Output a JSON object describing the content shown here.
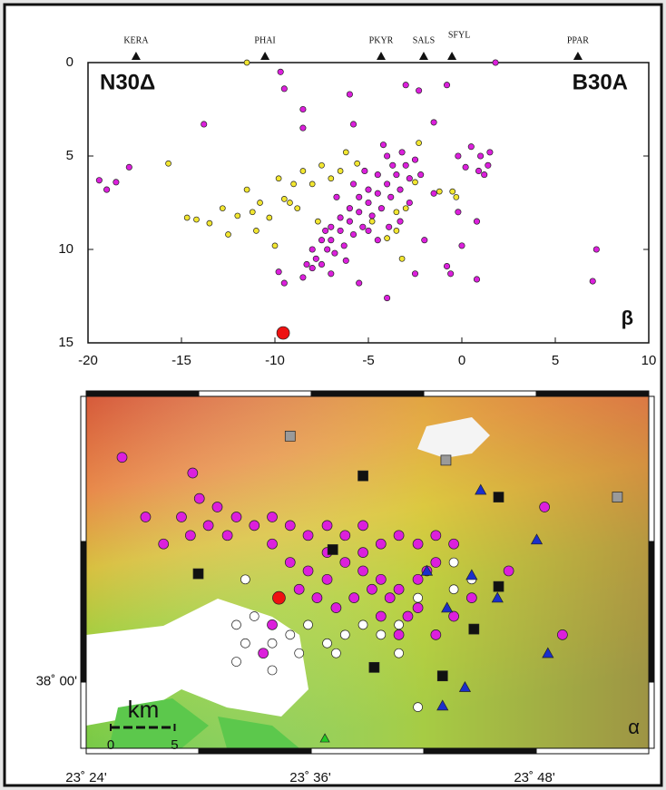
{
  "chart_data": [
    {
      "type": "scatter",
      "annotations": [
        "N30Δ",
        "B30A",
        "β"
      ],
      "xlim": [
        -20,
        10
      ],
      "xticks": [
        -20,
        -15,
        -10,
        -5,
        0,
        5,
        10
      ],
      "ylim": [
        0,
        15
      ],
      "yticks": [
        0,
        5,
        10,
        15
      ],
      "y_inverted": true,
      "stations": {
        "names": [
          "KERA",
          "PHAI",
          "PKYR",
          "SALS",
          "SFYL",
          "PPAR"
        ],
        "x": [
          -17.43,
          -10.53,
          -4.32,
          -2.04,
          -0.53,
          6.21
        ]
      },
      "series": [
        {
          "color": "#dc1fdc",
          "marker": "circle",
          "size": 3.2,
          "x": [
            -8,
            -7.8,
            -7.5,
            -7.2,
            -7,
            -6.8,
            -6.5,
            -6.3,
            -6,
            -5.8,
            -5.5,
            -5.3,
            -5,
            -4.8,
            -4.5,
            -4.3,
            -4,
            -3.8,
            -3.5,
            -3.3,
            -3,
            -2.8,
            -2.5,
            -4,
            -4.5,
            -5,
            -5.5,
            -6,
            -6.5,
            -7,
            -7.5,
            -8,
            -8.3,
            -8.5,
            -7,
            -6.2,
            -3.7,
            -3.2,
            -4.2,
            -5.2,
            -2.2,
            -2.8,
            -3.3,
            -4.5,
            -5,
            -6.7,
            -5.8,
            -3.9,
            -7.3,
            -19.4,
            -19,
            -18.5,
            -17.8,
            -13.8,
            -9.7,
            -9.5,
            -8.5,
            -8.5,
            -6,
            -5.8,
            -3,
            -2.3,
            -1.5,
            -0.8,
            1.8,
            -2,
            -1.5,
            -0.2,
            0.8,
            0,
            -0.8,
            -0.6,
            0.8,
            -2.5,
            -4,
            -5.5,
            -9.5,
            -9.8,
            7.2,
            7,
            0.5,
            1,
            1.4,
            1.5,
            1.2,
            0.9,
            -0.2,
            0.2
          ],
          "values": [
            11,
            10.5,
            10.8,
            10,
            9.5,
            10.2,
            9,
            9.8,
            8.5,
            9.2,
            8,
            8.8,
            7.5,
            8.2,
            7,
            7.8,
            6.5,
            7.2,
            6,
            6.8,
            5.5,
            6.2,
            5.2,
            5,
            6,
            6.8,
            7.2,
            7.8,
            8.3,
            8.8,
            9.5,
            10,
            10.8,
            11.5,
            11.3,
            10.6,
            5.5,
            4.8,
            4.4,
            5.8,
            6,
            7.5,
            8.5,
            9.5,
            9,
            7.2,
            6.5,
            8.8,
            9,
            6.3,
            6.8,
            6.4,
            5.6,
            3.3,
            0.5,
            1.4,
            2.5,
            3.5,
            1.7,
            3.3,
            1.2,
            1.5,
            3.2,
            1.2,
            0,
            9.5,
            7,
            8,
            8.5,
            9.8,
            10.9,
            11.3,
            11.6,
            11.3,
            12.6,
            11.8,
            11.8,
            11.2,
            10,
            11.7,
            4.5,
            5,
            5.5,
            4.8,
            6,
            5.8,
            5,
            5.6
          ]
        },
        {
          "color": "#f2e630",
          "marker": "circle",
          "size": 3,
          "x": [
            -15.7,
            -14.7,
            -14.2,
            -13.5,
            -12.8,
            -12.5,
            -11.5,
            -11.2,
            -11,
            -10.8,
            -10.3,
            -10,
            -9.8,
            -9.5,
            -9,
            -8.8,
            -8.5,
            -8,
            -7.7,
            -7.5,
            -7,
            -6.5,
            -6.2,
            -5.6,
            -4.8,
            -4,
            -3.5,
            -3,
            -2.5,
            -1.2,
            -0.3,
            -0.5,
            -2.3,
            -11.5,
            -9.2,
            -3.2,
            -3.5,
            -12
          ],
          "values": [
            5.4,
            8.3,
            8.4,
            8.6,
            7.8,
            9.2,
            6.8,
            8,
            9,
            7.5,
            8.3,
            9.8,
            6.2,
            7.3,
            6.5,
            7.8,
            5.8,
            6.5,
            8.5,
            5.5,
            6.2,
            5.8,
            4.8,
            5.4,
            8.5,
            9.4,
            8,
            7.8,
            6.4,
            6.9,
            7.2,
            6.9,
            4.3,
            0,
            7.5,
            10.5,
            9,
            8.2
          ]
        },
        {
          "color": "#ee1111",
          "marker": "circle",
          "size": 7,
          "x": [
            -9.56
          ],
          "values": [
            14.47
          ]
        }
      ]
    },
    {
      "type": "map",
      "annotations": [
        "α"
      ],
      "xlim": [
        23.4,
        23.902
      ],
      "ylim": [
        37.953,
        38.201
      ],
      "xticks": [
        {
          "value": 23.4,
          "label": "23˚ 24'"
        },
        {
          "value": 23.6,
          "label": "23˚ 36'"
        },
        {
          "value": 23.8,
          "label": "23˚ 48'"
        }
      ],
      "yticks": [
        {
          "value": 38,
          "label": "38˚ 00'"
        }
      ],
      "scale_bar": {
        "unit": "km",
        "ticks": [
          0,
          5
        ]
      },
      "series": [
        {
          "color": "#dc1fdc",
          "marker": "circle",
          "size": 5.5,
          "x": [
            23.432,
            23.495,
            23.485,
            23.501,
            23.517,
            23.534,
            23.55,
            23.566,
            23.582,
            23.598,
            23.615,
            23.631,
            23.647,
            23.663,
            23.679,
            23.696,
            23.712,
            23.728,
            23.493,
            23.509,
            23.526,
            23.566,
            23.582,
            23.598,
            23.615,
            23.631,
            23.647,
            23.663,
            23.679,
            23.696,
            23.704,
            23.712,
            23.59,
            23.606,
            23.623,
            23.639,
            23.655,
            23.671,
            23.687,
            23.696,
            23.647,
            23.615,
            23.777,
            23.809,
            23.825,
            23.558,
            23.566,
            23.469,
            23.453,
            23.744,
            23.712,
            23.728,
            23.679,
            23.663
          ],
          "values": [
            38.158,
            38.147,
            38.116,
            38.129,
            38.123,
            38.116,
            38.11,
            38.116,
            38.11,
            38.103,
            38.11,
            38.103,
            38.11,
            38.097,
            38.103,
            38.097,
            38.103,
            38.097,
            38.103,
            38.11,
            38.103,
            38.097,
            38.084,
            38.078,
            38.072,
            38.084,
            38.078,
            38.072,
            38.065,
            38.072,
            38.078,
            38.084,
            38.065,
            38.059,
            38.052,
            38.059,
            38.065,
            38.059,
            38.046,
            38.052,
            38.091,
            38.091,
            38.078,
            38.123,
            38.033,
            38.02,
            38.04,
            38.097,
            38.116,
            38.059,
            38.033,
            38.046,
            38.033,
            38.046
          ]
        },
        {
          "color": "#ffffff",
          "marker": "circle",
          "size": 5,
          "x": [
            23.534,
            23.55,
            23.542,
            23.566,
            23.582,
            23.598,
            23.615,
            23.623,
            23.631,
            23.647,
            23.663,
            23.679,
            23.534,
            23.59,
            23.728,
            23.744,
            23.696,
            23.679,
            23.696,
            23.566,
            23.542,
            23.728
          ],
          "values": [
            38.04,
            38.046,
            38.027,
            38.027,
            38.033,
            38.04,
            38.027,
            38.02,
            38.033,
            38.04,
            38.033,
            38.04,
            38.014,
            38.02,
            38.084,
            38.072,
            38.059,
            38.02,
            37.982,
            38.008,
            38.072,
            38.065
          ]
        },
        {
          "color": "#111111",
          "marker": "square",
          "size": 5.5,
          "x": [
            23.647,
            23.768,
            23.62,
            23.5,
            23.768,
            23.746,
            23.657,
            23.718
          ],
          "values": [
            38.145,
            38.13,
            38.093,
            38.076,
            38.067,
            38.037,
            38.01,
            38.004
          ]
        },
        {
          "color": "#9a9a9a",
          "marker": "square",
          "size": 5.5,
          "x": [
            23.582,
            23.721,
            23.874
          ],
          "values": [
            38.173,
            38.156,
            38.13
          ]
        },
        {
          "color": "#1a2fcc",
          "marker": "triangle",
          "size": 6,
          "x": [
            23.752,
            23.802,
            23.704,
            23.744,
            23.767,
            23.722,
            23.738,
            23.812,
            23.718
          ],
          "values": [
            38.135,
            38.1,
            38.078,
            38.075,
            38.059,
            38.052,
            37.996,
            38.02,
            37.983
          ]
        },
        {
          "color": "#ee1111",
          "marker": "circle",
          "size": 7,
          "x": [
            23.572
          ],
          "values": [
            38.059
          ]
        },
        {
          "color": "#22cc22",
          "marker": "triangle",
          "size": 5,
          "x": [
            23.613
          ],
          "values": [
            37.96
          ]
        }
      ]
    }
  ]
}
